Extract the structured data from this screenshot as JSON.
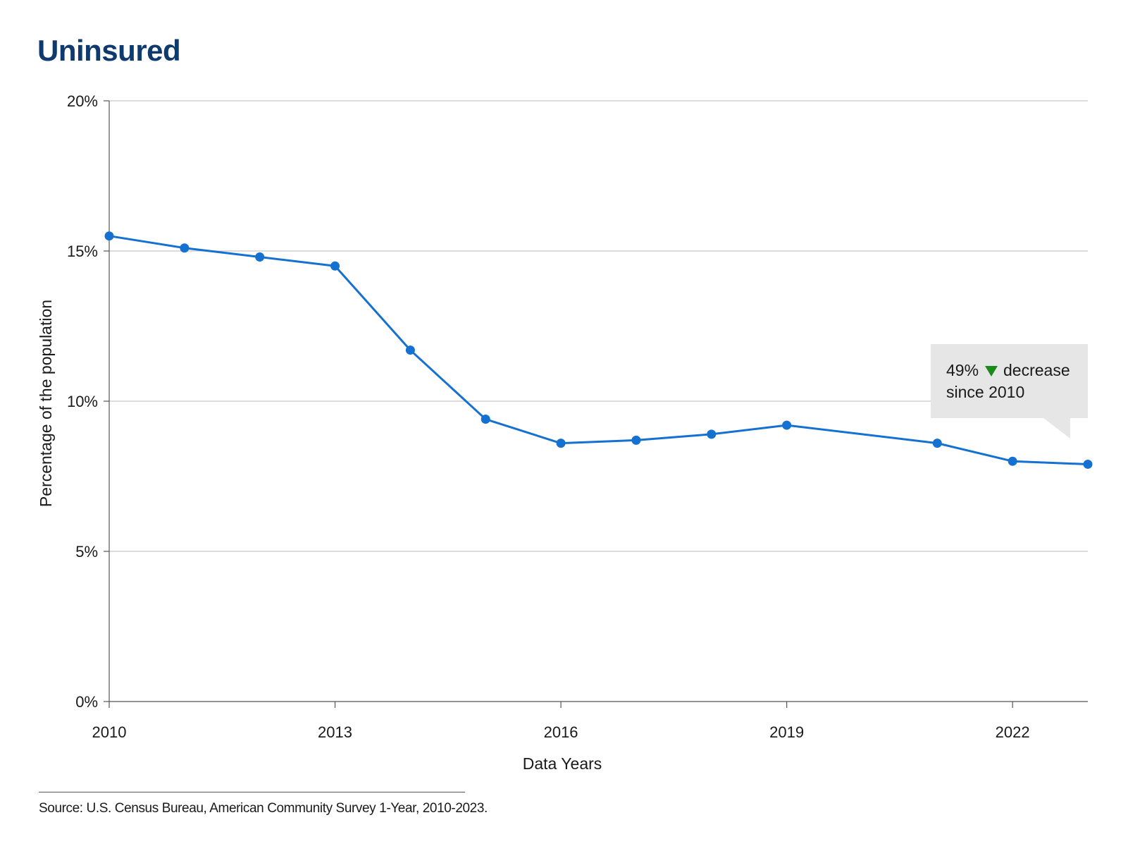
{
  "title": "Uninsured",
  "source": "Source: U.S. Census Bureau, American Community Survey 1-Year, 2010-2023.",
  "colors": {
    "line": "#1471d2",
    "grid": "#c8c8c8",
    "title": "#0e3a6e",
    "callout_bg": "#e6e6e6",
    "arrow": "#1a8a1a"
  },
  "callout": {
    "percent": "49%",
    "word": "decrease",
    "line2": "since 2010",
    "arrow_icon": "triangle-down-icon"
  },
  "chart_data": {
    "type": "line",
    "title": "Uninsured",
    "xlabel": "Data Years",
    "ylabel": "Percentage of the population",
    "xlim": [
      2010,
      2023
    ],
    "ylim": [
      0,
      20
    ],
    "x_ticks": [
      2010,
      2013,
      2016,
      2019,
      2022
    ],
    "x_tick_labels": [
      "2010",
      "2013",
      "2016",
      "2019",
      "2022"
    ],
    "y_ticks": [
      0,
      5,
      10,
      15,
      20
    ],
    "y_tick_labels": [
      "0%",
      "5%",
      "10%",
      "15%",
      "20%"
    ],
    "grid": "horizontal",
    "series": [
      {
        "name": "Uninsured",
        "x": [
          2010,
          2011,
          2012,
          2013,
          2014,
          2015,
          2016,
          2017,
          2018,
          2019,
          2021,
          2022,
          2023
        ],
        "values": [
          15.5,
          15.1,
          14.8,
          14.5,
          11.7,
          9.4,
          8.6,
          8.7,
          8.9,
          9.2,
          8.6,
          8.0,
          7.9
        ]
      }
    ],
    "annotation": "49% decrease since 2010"
  }
}
